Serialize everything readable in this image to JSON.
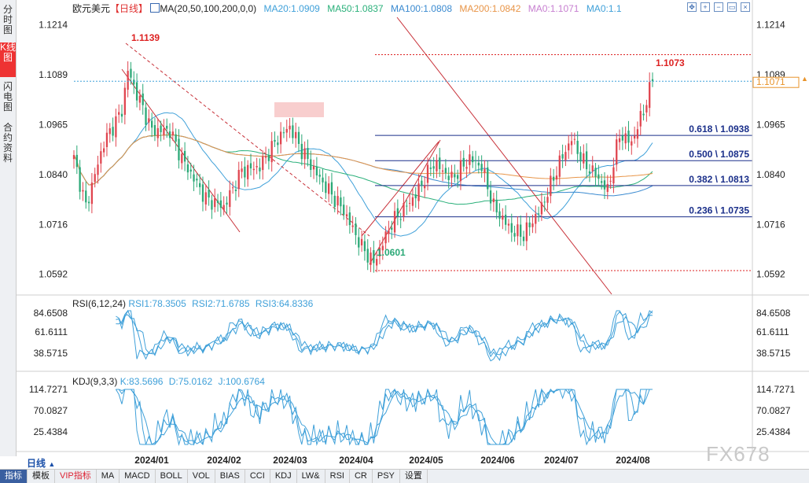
{
  "sidebar": {
    "tabs": [
      {
        "label": "分时图",
        "active": false
      },
      {
        "label": "K线图",
        "active": true
      },
      {
        "label": "闪电图",
        "active": false
      },
      {
        "label": "合约资料",
        "active": false
      }
    ]
  },
  "header": {
    "symbol": "欧元美元",
    "period_tag": "【日线】",
    "ma_label": "MA(20,50,100,200,0,0)",
    "ma_items": [
      {
        "text": "MA20:1.0909",
        "color": "#3fa0d9"
      },
      {
        "text": "MA50:1.0837",
        "color": "#2ab07a"
      },
      {
        "text": "MA100:1.0808",
        "color": "#3a8ad0"
      },
      {
        "text": "MA200:1.0842",
        "color": "#e89548"
      },
      {
        "text": "MA0:1.1071",
        "color": "#c77fd0"
      },
      {
        "text": "MA0:1.1",
        "color": "#3fa0d9"
      }
    ]
  },
  "price_axis": {
    "ticks": [
      "1.1214",
      "1.1089",
      "1.0965",
      "1.0840",
      "1.0716",
      "1.0592"
    ],
    "current_price": "1.1071"
  },
  "annotations": {
    "high_label": "1.1139",
    "low_label": "1.0601",
    "last_high_label": "1.1073"
  },
  "fib_levels": [
    {
      "label": "0.618 \\ 1.0938",
      "value": 1.0938
    },
    {
      "label": "0.500 \\ 1.0875",
      "value": 1.0875
    },
    {
      "label": "0.382 \\ 1.0813",
      "value": 1.0813
    },
    {
      "label": "0.236 \\ 1.0735",
      "value": 1.0735
    }
  ],
  "rsi_panel": {
    "title": "RSI(6,12,24)",
    "items": [
      {
        "text": "RSI1:78.3505",
        "color": "#3fa0d9"
      },
      {
        "text": "RSI2:71.6785",
        "color": "#3fa0d9"
      },
      {
        "text": "RSI3:64.8336",
        "color": "#3fa0d9"
      }
    ],
    "ticks": [
      "84.6508",
      "61.6111",
      "38.5715"
    ]
  },
  "kdj_panel": {
    "title": "KDJ(9,3,3)",
    "items": [
      {
        "text": "K:83.5696",
        "color": "#3fa0d9"
      },
      {
        "text": "D:75.0162",
        "color": "#3fa0d9"
      },
      {
        "text": "J:100.6764",
        "color": "#3fa0d9"
      }
    ],
    "ticks": [
      "114.7271",
      "70.0827",
      "25.4384"
    ]
  },
  "time_axis": [
    "2024/01",
    "2024/02",
    "2024/03",
    "2024/04",
    "2024/05",
    "2024/06",
    "2024/07",
    "2024/08"
  ],
  "period_label": "日线",
  "watermark": "FX678",
  "bottom_tabs": [
    {
      "label": "指标",
      "active": true
    },
    {
      "label": "模板"
    },
    {
      "label": "VIP指标",
      "vip": true
    },
    {
      "label": "MA"
    },
    {
      "label": "MACD"
    },
    {
      "label": "BOLL"
    },
    {
      "label": "VOL"
    },
    {
      "label": "BIAS"
    },
    {
      "label": "CCI"
    },
    {
      "label": "KDJ"
    },
    {
      "label": "LW&"
    },
    {
      "label": "RSI"
    },
    {
      "label": "CR"
    },
    {
      "label": "PSY"
    },
    {
      "label": "设置"
    }
  ],
  "colors": {
    "up": "#e0454f",
    "down": "#2aa876",
    "fib": "#1a2f8a",
    "trend": "#c8323a",
    "current_price": "#e8932a"
  },
  "chart_data": {
    "type": "candlestick",
    "ylim": [
      1.055,
      1.124
    ],
    "waypoints": [
      [
        0,
        1.088
      ],
      [
        4,
        1.076
      ],
      [
        10,
        1.092
      ],
      [
        16,
        1.1
      ],
      [
        18,
        1.11
      ],
      [
        20,
        1.106
      ],
      [
        26,
        1.095
      ],
      [
        32,
        1.095
      ],
      [
        36,
        1.088
      ],
      [
        44,
        1.078
      ],
      [
        50,
        1.076
      ],
      [
        56,
        1.085
      ],
      [
        62,
        1.086
      ],
      [
        68,
        1.093
      ],
      [
        72,
        1.096
      ],
      [
        76,
        1.09
      ],
      [
        82,
        1.083
      ],
      [
        90,
        1.075
      ],
      [
        96,
        1.066
      ],
      [
        100,
        1.062
      ],
      [
        106,
        1.072
      ],
      [
        114,
        1.079
      ],
      [
        120,
        1.087
      ],
      [
        126,
        1.083
      ],
      [
        132,
        1.088
      ],
      [
        136,
        1.086
      ],
      [
        140,
        1.076
      ],
      [
        146,
        1.07
      ],
      [
        150,
        1.069
      ],
      [
        156,
        1.076
      ],
      [
        162,
        1.087
      ],
      [
        166,
        1.093
      ],
      [
        170,
        1.087
      ],
      [
        174,
        1.084
      ],
      [
        178,
        1.08
      ],
      [
        182,
        1.094
      ],
      [
        186,
        1.092
      ],
      [
        190,
        1.1
      ],
      [
        193,
        1.1073
      ]
    ]
  }
}
